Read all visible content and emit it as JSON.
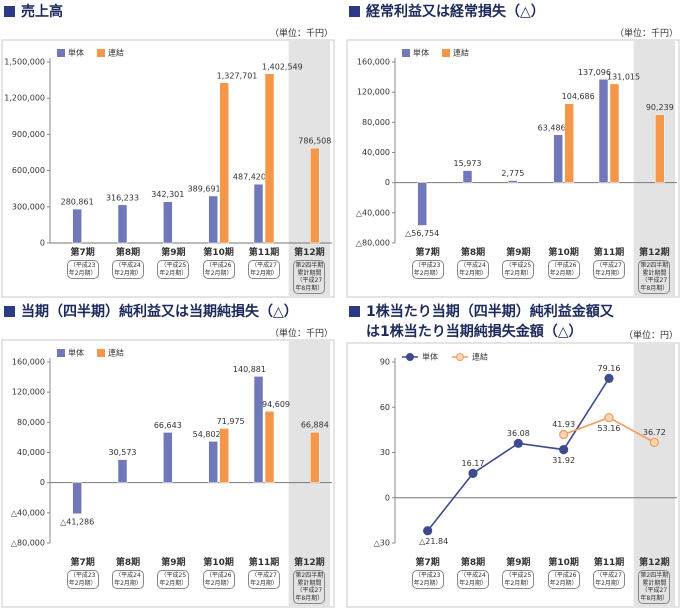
{
  "chart_data": [
    {
      "type": "bar",
      "title": "売上高",
      "unit": "（単位：千円）",
      "legend": "top-left",
      "highlight_category": 5,
      "categories": [
        "第7期",
        "第8期",
        "第9期",
        "第10期",
        "第11期",
        "第12期"
      ],
      "category_notes": [
        "（平成23年2月期）",
        "（平成24年2月期）",
        "（平成25年2月期）",
        "（平成26年2月期）",
        "（平成27年2月期）",
        "第2四半期累計期間（平成27年8月期）"
      ],
      "ylim": [
        0,
        1500000
      ],
      "yticks": [
        0,
        {
          "value": 300000,
          "label": "300,000"
        },
        {
          "value": 600000,
          "label": "600,000"
        },
        {
          "value": 900000,
          "label": "900,000"
        },
        {
          "value": 1200000,
          "label": "1,200,000"
        },
        {
          "value": 1500000,
          "label": "1,500,000"
        }
      ],
      "series": [
        {
          "name": "単体",
          "color": "#7078ba",
          "values": [
            280861,
            316233,
            342301,
            389691,
            487420,
            null
          ],
          "value_labels": [
            "280,861",
            "316,233",
            "342,301",
            "389,691",
            "487,420",
            null
          ]
        },
        {
          "name": "連結",
          "color": "#f5974a",
          "values": [
            null,
            null,
            null,
            1327701,
            1402549,
            786508
          ],
          "value_labels": [
            null,
            null,
            null,
            "1,327,701",
            "1,402,549",
            "786,508"
          ]
        }
      ]
    },
    {
      "type": "bar",
      "title": "経常利益又は経常損失（△）",
      "unit": "（単位：千円）",
      "legend": "top-left",
      "highlight_category": 5,
      "categories": [
        "第7期",
        "第8期",
        "第9期",
        "第10期",
        "第11期",
        "第12期"
      ],
      "category_notes": [
        "（平成23年2月期）",
        "（平成24年2月期）",
        "（平成25年2月期）",
        "（平成26年2月期）",
        "（平成27年2月期）",
        "第2四半期累計期間（平成27年8月期）"
      ],
      "ylim": [
        -80000,
        160000
      ],
      "yticks": [
        {
          "value": -80000,
          "label": "△80,000"
        },
        {
          "value": -40000,
          "label": "△40,000"
        },
        0,
        {
          "value": 40000,
          "label": "40,000"
        },
        {
          "value": 80000,
          "label": "80,000"
        },
        {
          "value": 120000,
          "label": "120,000"
        },
        {
          "value": 160000,
          "label": "160,000"
        }
      ],
      "series": [
        {
          "name": "単体",
          "color": "#7078ba",
          "values": [
            -56754,
            15973,
            2775,
            63486,
            137096,
            null
          ],
          "value_labels": [
            "△56,754",
            "15,973",
            "2,775",
            "63,486",
            "137,096",
            null
          ]
        },
        {
          "name": "連結",
          "color": "#f5974a",
          "values": [
            null,
            null,
            null,
            104686,
            131015,
            90239
          ],
          "value_labels": [
            null,
            null,
            null,
            "104,686",
            "131,015",
            "90,239"
          ]
        }
      ]
    },
    {
      "type": "bar",
      "title": "当期（四半期）純利益又は当期純損失（△）",
      "unit": "（単位：千円）",
      "legend": "top-left",
      "highlight_category": 5,
      "categories": [
        "第7期",
        "第8期",
        "第9期",
        "第10期",
        "第11期",
        "第12期"
      ],
      "category_notes": [
        "（平成23年2月期）",
        "（平成24年2月期）",
        "（平成25年2月期）",
        "（平成26年2月期）",
        "（平成27年2月期）",
        "第2四半期累計期間（平成27年8月期）"
      ],
      "ylim": [
        -80000,
        160000
      ],
      "yticks": [
        {
          "value": -80000,
          "label": "△80,000"
        },
        {
          "value": -40000,
          "label": "△40,000"
        },
        0,
        {
          "value": 40000,
          "label": "40,000"
        },
        {
          "value": 80000,
          "label": "80,000"
        },
        {
          "value": 120000,
          "label": "120,000"
        },
        {
          "value": 160000,
          "label": "160,000"
        }
      ],
      "series": [
        {
          "name": "単体",
          "color": "#7078ba",
          "values": [
            -41286,
            30573,
            66643,
            54802,
            140881,
            null
          ],
          "value_labels": [
            "△41,286",
            "30,573",
            "66,643",
            "54,802",
            "140,881",
            null
          ]
        },
        {
          "name": "連結",
          "color": "#f5974a",
          "values": [
            null,
            null,
            null,
            71975,
            94609,
            66884
          ],
          "value_labels": [
            null,
            null,
            null,
            "71,975",
            "94,609",
            "66,884"
          ]
        }
      ]
    },
    {
      "type": "line",
      "title": "1株当たり当期（四半期）純利益金額又は1株当たり当期純損失金額（△）",
      "unit": "（単位：円）",
      "legend": "top-left",
      "highlight_category": 5,
      "categories": [
        "第7期",
        "第8期",
        "第9期",
        "第10期",
        "第11期",
        "第12期"
      ],
      "category_notes": [
        "（平成23年2月期）",
        "（平成24年2月期）",
        "（平成25年2月期）",
        "（平成26年2月期）",
        "（平成27年2月期）",
        "第2四半期累計期間（平成27年8月期）"
      ],
      "ylim": [
        -30,
        90
      ],
      "yticks": [
        {
          "value": -30,
          "label": "△30"
        },
        0,
        30,
        60,
        90
      ],
      "series": [
        {
          "name": "単体",
          "color": "#3f4b8f",
          "values": [
            -21.84,
            16.17,
            36.08,
            31.92,
            79.16,
            null
          ],
          "value_labels": [
            "△21.84",
            "16.17",
            "36.08",
            "31.92",
            "79.16",
            null
          ]
        },
        {
          "name": "連結",
          "color": "#f39a5a",
          "values": [
            null,
            null,
            null,
            41.93,
            53.16,
            36.72
          ],
          "value_labels": [
            null,
            null,
            null,
            "41.93",
            "53.16",
            "36.72"
          ]
        }
      ]
    }
  ]
}
